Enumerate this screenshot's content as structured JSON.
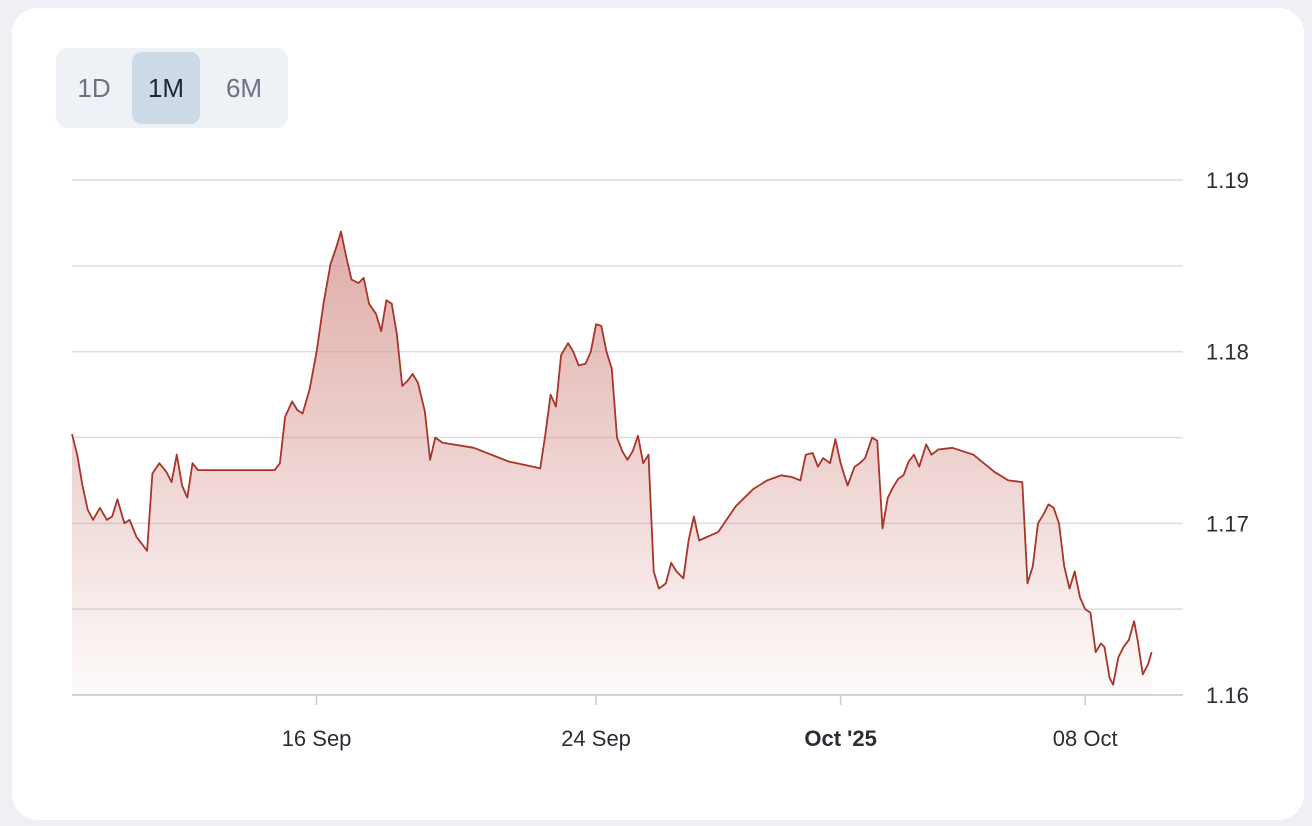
{
  "range_selector": {
    "options": [
      {
        "label": "1D",
        "active": false
      },
      {
        "label": "1M",
        "active": true
      },
      {
        "label": "6M",
        "active": false
      }
    ]
  },
  "colors": {
    "line": "#a8342a",
    "fill_top": "#d4908a",
    "grid": "#dadde2",
    "text": "#2a2d34",
    "active_bg": "#cdd9e7"
  },
  "chart_data": {
    "type": "area",
    "title": "",
    "xlabel": "",
    "ylabel": "",
    "ylim": [
      1.16,
      1.19
    ],
    "y_ticks": [
      {
        "value": 1.19,
        "label": "1.19"
      },
      {
        "value": 1.18,
        "label": "1.18"
      },
      {
        "value": 1.17,
        "label": "1.17"
      },
      {
        "value": 1.16,
        "label": "1.16"
      }
    ],
    "y_gridlines": [
      1.16,
      1.165,
      1.17,
      1.175,
      1.18,
      1.185,
      1.19
    ],
    "x_range_days": [
      0,
      31.8
    ],
    "x_ticks": [
      {
        "day": 7,
        "label": "16 Sep",
        "bold": false
      },
      {
        "day": 15,
        "label": "24 Sep",
        "bold": false
      },
      {
        "day": 22,
        "label": "Oct '25",
        "bold": true
      },
      {
        "day": 29,
        "label": "08 Oct",
        "bold": false
      }
    ],
    "grid": true,
    "legend": "none",
    "series": [
      {
        "points": [
          [
            0.0,
            1.1752
          ],
          [
            0.15,
            1.174
          ],
          [
            0.3,
            1.1722
          ],
          [
            0.45,
            1.1708
          ],
          [
            0.6,
            1.1702
          ],
          [
            0.8,
            1.1709
          ],
          [
            1.0,
            1.1702
          ],
          [
            1.15,
            1.1704
          ],
          [
            1.3,
            1.1714
          ],
          [
            1.5,
            1.17
          ],
          [
            1.65,
            1.1702
          ],
          [
            1.85,
            1.1692
          ],
          [
            2.0,
            1.1688
          ],
          [
            2.15,
            1.1684
          ],
          [
            2.3,
            1.1729
          ],
          [
            2.5,
            1.1735
          ],
          [
            2.7,
            1.173
          ],
          [
            2.85,
            1.1724
          ],
          [
            3.0,
            1.174
          ],
          [
            3.15,
            1.1722
          ],
          [
            3.3,
            1.1715
          ],
          [
            3.45,
            1.1735
          ],
          [
            3.6,
            1.1731
          ],
          [
            5.0,
            1.1731
          ],
          [
            5.8,
            1.1731
          ],
          [
            5.95,
            1.1735
          ],
          [
            6.1,
            1.1762
          ],
          [
            6.3,
            1.1771
          ],
          [
            6.45,
            1.1766
          ],
          [
            6.6,
            1.1764
          ],
          [
            6.8,
            1.1778
          ],
          [
            7.0,
            1.18
          ],
          [
            7.2,
            1.1828
          ],
          [
            7.4,
            1.1851
          ],
          [
            7.55,
            1.186
          ],
          [
            7.7,
            1.187
          ],
          [
            7.85,
            1.1855
          ],
          [
            8.0,
            1.1842
          ],
          [
            8.2,
            1.184
          ],
          [
            8.35,
            1.1843
          ],
          [
            8.5,
            1.1828
          ],
          [
            8.7,
            1.1822
          ],
          [
            8.85,
            1.1812
          ],
          [
            9.0,
            1.183
          ],
          [
            9.15,
            1.1828
          ],
          [
            9.3,
            1.181
          ],
          [
            9.45,
            1.178
          ],
          [
            9.6,
            1.1783
          ],
          [
            9.75,
            1.1787
          ],
          [
            9.9,
            1.1782
          ],
          [
            10.1,
            1.1765
          ],
          [
            10.25,
            1.1737
          ],
          [
            10.4,
            1.175
          ],
          [
            10.6,
            1.1747
          ],
          [
            11.5,
            1.1744
          ],
          [
            12.5,
            1.1736
          ],
          [
            13.2,
            1.1733
          ],
          [
            13.4,
            1.1732
          ],
          [
            13.55,
            1.1752
          ],
          [
            13.7,
            1.1775
          ],
          [
            13.85,
            1.1768
          ],
          [
            14.0,
            1.1798
          ],
          [
            14.2,
            1.1805
          ],
          [
            14.35,
            1.18
          ],
          [
            14.5,
            1.1792
          ],
          [
            14.7,
            1.1793
          ],
          [
            14.85,
            1.18
          ],
          [
            15.0,
            1.1816
          ],
          [
            15.15,
            1.1815
          ],
          [
            15.3,
            1.18
          ],
          [
            15.45,
            1.179
          ],
          [
            15.6,
            1.175
          ],
          [
            15.75,
            1.1742
          ],
          [
            15.9,
            1.1737
          ],
          [
            16.05,
            1.1742
          ],
          [
            16.2,
            1.1751
          ],
          [
            16.35,
            1.1735
          ],
          [
            16.5,
            1.174
          ],
          [
            16.65,
            1.1672
          ],
          [
            16.8,
            1.1662
          ],
          [
            17.0,
            1.1665
          ],
          [
            17.15,
            1.1677
          ],
          [
            17.3,
            1.1672
          ],
          [
            17.5,
            1.1668
          ],
          [
            17.65,
            1.169
          ],
          [
            17.8,
            1.1704
          ],
          [
            17.95,
            1.169
          ],
          [
            18.5,
            1.1695
          ],
          [
            19.0,
            1.171
          ],
          [
            19.5,
            1.172
          ],
          [
            19.9,
            1.1725
          ],
          [
            20.3,
            1.1728
          ],
          [
            20.6,
            1.1727
          ],
          [
            20.85,
            1.1725
          ],
          [
            21.0,
            1.174
          ],
          [
            21.2,
            1.1741
          ],
          [
            21.35,
            1.1733
          ],
          [
            21.5,
            1.1738
          ],
          [
            21.7,
            1.1735
          ],
          [
            21.85,
            1.1749
          ],
          [
            22.0,
            1.1735
          ],
          [
            22.2,
            1.1722
          ],
          [
            22.4,
            1.1733
          ],
          [
            22.55,
            1.1735
          ],
          [
            22.7,
            1.1738
          ],
          [
            22.9,
            1.175
          ],
          [
            23.05,
            1.1748
          ],
          [
            23.2,
            1.1697
          ],
          [
            23.35,
            1.1715
          ],
          [
            23.5,
            1.1721
          ],
          [
            23.65,
            1.1726
          ],
          [
            23.8,
            1.1728
          ],
          [
            23.95,
            1.1736
          ],
          [
            24.1,
            1.174
          ],
          [
            24.25,
            1.1733
          ],
          [
            24.45,
            1.1746
          ],
          [
            24.6,
            1.174
          ],
          [
            24.8,
            1.1743
          ],
          [
            25.2,
            1.1744
          ],
          [
            25.8,
            1.174
          ],
          [
            26.4,
            1.173
          ],
          [
            26.8,
            1.1725
          ],
          [
            27.2,
            1.1724
          ],
          [
            27.35,
            1.1665
          ],
          [
            27.5,
            1.1675
          ],
          [
            27.65,
            1.17
          ],
          [
            27.8,
            1.1705
          ],
          [
            27.95,
            1.1711
          ],
          [
            28.1,
            1.1709
          ],
          [
            28.25,
            1.17
          ],
          [
            28.4,
            1.1675
          ],
          [
            28.55,
            1.1662
          ],
          [
            28.7,
            1.1672
          ],
          [
            28.85,
            1.1657
          ],
          [
            29.0,
            1.165
          ],
          [
            29.15,
            1.1648
          ],
          [
            29.3,
            1.1625
          ],
          [
            29.45,
            1.163
          ],
          [
            29.55,
            1.1628
          ],
          [
            29.7,
            1.161
          ],
          [
            29.8,
            1.1606
          ],
          [
            29.95,
            1.1622
          ],
          [
            30.1,
            1.1628
          ],
          [
            30.25,
            1.1632
          ],
          [
            30.4,
            1.1643
          ],
          [
            30.5,
            1.1632
          ],
          [
            30.65,
            1.1612
          ],
          [
            30.8,
            1.1618
          ],
          [
            30.9,
            1.1625
          ]
        ]
      }
    ]
  }
}
